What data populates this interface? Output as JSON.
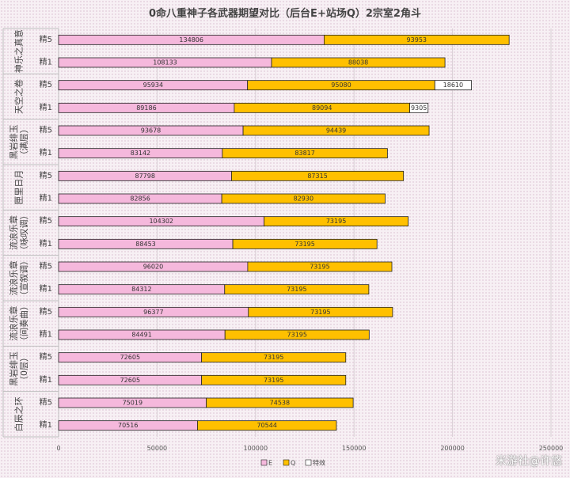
{
  "chart_data": {
    "type": "bar",
    "orientation": "horizontal",
    "stacked": true,
    "title": "0命八重神子各武器期望对比（后台E+站场Q）2宗室2角斗",
    "xlim": [
      0,
      250000
    ],
    "x_ticks": [
      "0",
      "50000",
      "100000",
      "150000",
      "200000",
      "250000"
    ],
    "grid": true,
    "legend_position": "bottom",
    "colors": {
      "E": "#f5b8dc",
      "Q": "#ffc000",
      "特效": "#ffffff"
    },
    "groups": [
      {
        "name": "神乐之真意",
        "categories": [
          "精5",
          "精1"
        ]
      },
      {
        "name": "天空之卷",
        "categories": [
          "精5",
          "精1"
        ]
      },
      {
        "name": "黑岩绯玉（满层）",
        "categories": [
          "精5",
          "精1"
        ]
      },
      {
        "name": "匣里日月",
        "categories": [
          "精5",
          "精1"
        ]
      },
      {
        "name": "流浪乐章（咏叹调）",
        "categories": [
          "精5",
          "精1"
        ]
      },
      {
        "name": "流浪乐章（宣叙调）",
        "categories": [
          "精5",
          "精1"
        ]
      },
      {
        "name": "流浪乐章（间奏曲）",
        "categories": [
          "精5",
          "精1"
        ]
      },
      {
        "name": "黑岩绯玉（0层）",
        "categories": [
          "精5",
          "精1"
        ]
      },
      {
        "name": "白辰之环",
        "categories": [
          "精5",
          "精1"
        ]
      }
    ],
    "series": [
      {
        "name": "E",
        "values": [
          134806,
          108133,
          95934,
          89186,
          93678,
          83142,
          87798,
          82856,
          104302,
          88453,
          96020,
          84312,
          96377,
          84491,
          72605,
          72605,
          75019,
          70516
        ]
      },
      {
        "name": "Q",
        "values": [
          93953,
          88038,
          95080,
          89094,
          94439,
          83817,
          87315,
          82930,
          73195,
          73195,
          73195,
          73195,
          73195,
          73195,
          73195,
          73195,
          74538,
          70544
        ]
      },
      {
        "name": "特效",
        "values": [
          null,
          null,
          18610,
          9305,
          null,
          null,
          null,
          null,
          null,
          null,
          null,
          null,
          null,
          null,
          null,
          null,
          null,
          null
        ]
      }
    ]
  },
  "watermark": "米游社@许悠"
}
